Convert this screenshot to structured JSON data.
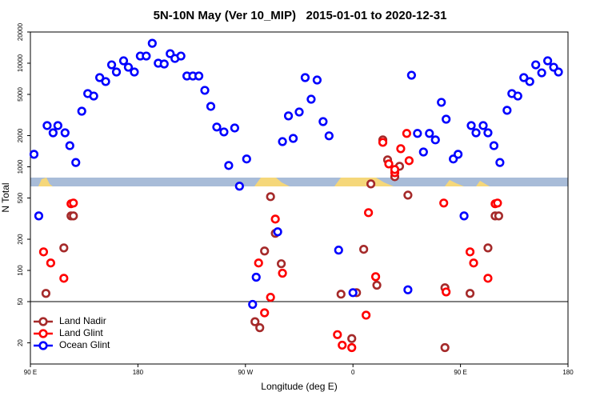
{
  "chart_data": {
    "type": "scatter",
    "title": "5N-10N May (Ver 10_MIP)   2015-01-01 to 2020-12-31",
    "xlabel": "Longitude (deg E)",
    "ylabel": "N Total",
    "xlim": [
      90,
      540
    ],
    "xticks": [
      {
        "value": 90,
        "label": "90 E"
      },
      180,
      {
        "value": 270,
        "label": "90 W"
      },
      {
        "value": 360,
        "label": "0"
      },
      {
        "value": 450,
        "label": "90 E"
      },
      {
        "value": 540,
        "label": "180"
      }
    ],
    "ylim": [
      12.5,
      20000
    ],
    "yscale": "log",
    "yticks": [
      20,
      50,
      100,
      200,
      500,
      1000,
      2000,
      5000,
      10000,
      20000
    ],
    "reference_line": 50,
    "legend": "lower left",
    "series": [
      {
        "name": "Land Nadir",
        "color": "#a52a2a",
        "x": [
          103,
          118,
          124,
          126,
          291,
          282,
          278,
          286,
          295,
          300,
          350,
          359,
          363,
          369,
          375,
          380,
          385,
          389,
          395,
          399,
          406,
          437,
          437,
          458,
          473,
          479,
          482
        ],
        "values": [
          60,
          165,
          336,
          336,
          515,
          28,
          32,
          154,
          228,
          116,
          59,
          22,
          61,
          160,
          684,
          72,
          1820,
          1167,
          803,
          1012,
          533,
          68,
          18,
          60,
          165,
          336,
          336
        ]
      },
      {
        "name": "Land Glint",
        "color": "#ff0000",
        "x": [
          101,
          107,
          118,
          124,
          126,
          281,
          286,
          291,
          295,
          301,
          347,
          351,
          359,
          371,
          373,
          379,
          385,
          390,
          395,
          395,
          400,
          405,
          407,
          436,
          438,
          458,
          461,
          473,
          479,
          481
        ],
        "values": [
          151,
          118,
          84,
          440,
          447,
          118,
          39,
          55,
          313,
          94,
          24,
          19,
          18,
          37,
          361,
          87,
          1722,
          1067,
          877,
          942,
          1496,
          2100,
          1146,
          447,
          62,
          151,
          118,
          84,
          440,
          447
        ]
      },
      {
        "name": "Ocean Glint",
        "color": "#0000ff",
        "x": [
          93,
          104,
          109,
          113,
          119,
          123,
          128,
          133,
          138,
          143,
          148,
          153,
          158,
          162,
          168,
          172,
          177,
          182,
          187,
          192,
          197,
          202,
          207,
          211,
          216,
          221,
          226,
          231,
          236,
          241,
          246,
          252,
          261,
          256,
          271,
          265,
          97,
          276,
          279,
          297,
          301,
          306,
          310,
          315,
          320,
          325,
          330,
          335,
          340,
          348,
          360,
          406,
          409,
          414,
          419,
          424,
          429,
          434,
          438,
          444,
          448,
          453,
          459,
          463,
          469,
          473,
          478,
          483,
          489,
          493,
          498,
          503,
          508,
          513,
          518,
          523,
          528,
          532
        ],
        "values": [
          1320,
          2500,
          2130,
          2500,
          2130,
          1600,
          1100,
          3440,
          5090,
          4820,
          7260,
          6650,
          9640,
          8220,
          10540,
          9140,
          8220,
          11720,
          11720,
          15560,
          10000,
          9820,
          12360,
          11110,
          11720,
          7520,
          7520,
          7520,
          5470,
          3830,
          2420,
          2170,
          2370,
          1030,
          1190,
          650,
          336,
          47,
          86,
          236,
          1750,
          3100,
          1880,
          3380,
          7260,
          4490,
          6880,
          2730,
          1990,
          157,
          61,
          65,
          7650,
          2100,
          1390,
          2100,
          1820,
          4190,
          2880,
          1190,
          1320,
          336,
          2500,
          2130,
          2500,
          2130,
          1600,
          1100,
          3510,
          5090,
          4820,
          7260,
          6650,
          9640,
          8070,
          10540,
          9140,
          8220
        ]
      }
    ]
  }
}
